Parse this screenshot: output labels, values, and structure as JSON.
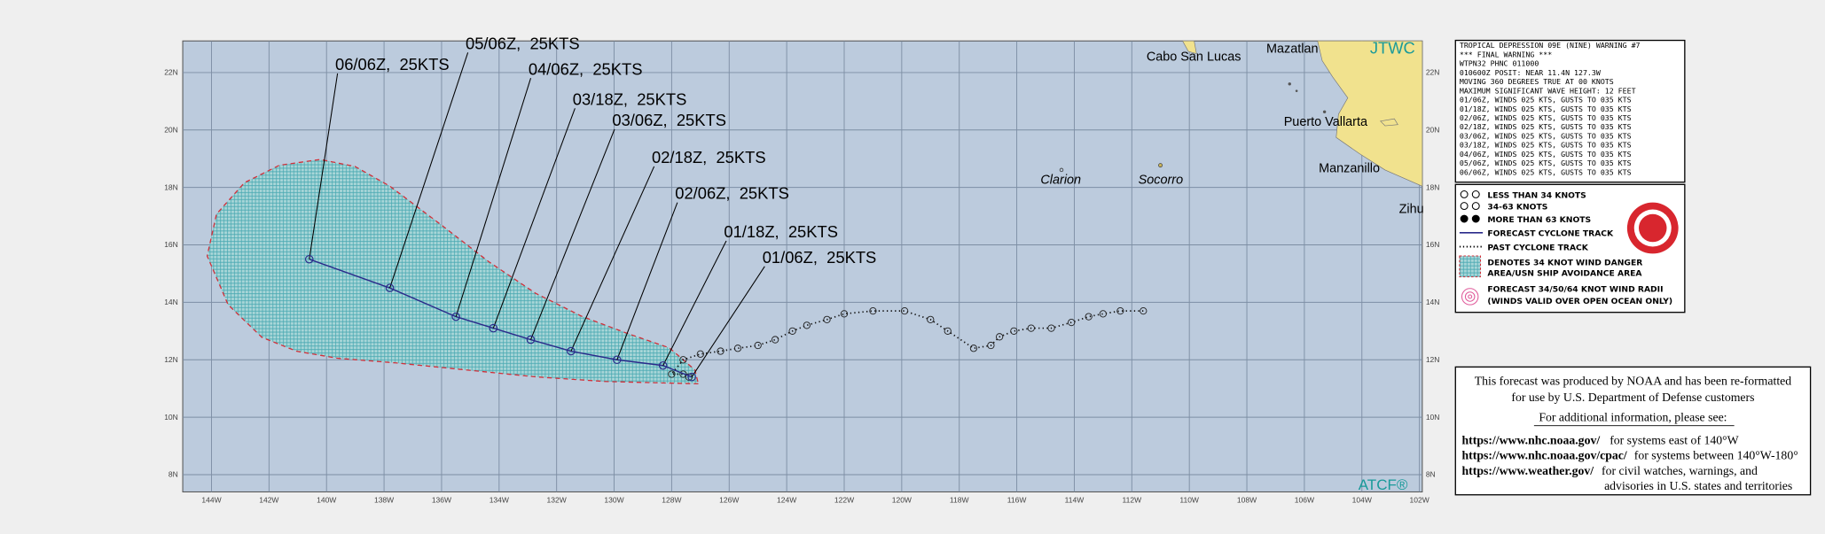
{
  "map": {
    "lon_lim": [
      -145,
      -101.9
    ],
    "lat_lim": [
      7.4,
      23.1
    ],
    "lon_ticks": [
      {
        "value": -144,
        "label": "144W"
      },
      {
        "value": -142,
        "label": "142W"
      },
      {
        "value": -140,
        "label": "140W"
      },
      {
        "value": -138,
        "label": "138W"
      },
      {
        "value": -136,
        "label": "136W"
      },
      {
        "value": -134,
        "label": "134W"
      },
      {
        "value": -132,
        "label": "132W"
      },
      {
        "value": -130,
        "label": "130W"
      },
      {
        "value": -128,
        "label": "128W"
      },
      {
        "value": -126,
        "label": "126W"
      },
      {
        "value": -124,
        "label": "124W"
      },
      {
        "value": -122,
        "label": "122W"
      },
      {
        "value": -120,
        "label": "120W"
      },
      {
        "value": -118,
        "label": "118W"
      },
      {
        "value": -116,
        "label": "116W"
      },
      {
        "value": -114,
        "label": "114W"
      },
      {
        "value": -112,
        "label": "112W"
      },
      {
        "value": -110,
        "label": "110W"
      },
      {
        "value": -108,
        "label": "108W"
      },
      {
        "value": -106,
        "label": "106W"
      },
      {
        "value": -104,
        "label": "104W"
      },
      {
        "value": -102,
        "label": "102W"
      }
    ],
    "lat_ticks": [
      {
        "value": 8,
        "label": "8N"
      },
      {
        "value": 10,
        "label": "10N"
      },
      {
        "value": 12,
        "label": "12N"
      },
      {
        "value": 14,
        "label": "14N"
      },
      {
        "value": 16,
        "label": "16N"
      },
      {
        "value": 18,
        "label": "18N"
      },
      {
        "value": 20,
        "label": "20N"
      },
      {
        "value": 22,
        "label": "22N"
      }
    ],
    "places": [
      "Cabo San Lucas",
      "Mazatlan",
      "Puerto Vallarta",
      "Manzanillo",
      "Zihu",
      "Clarion",
      "Socorro"
    ],
    "agency": "JTWC",
    "credit": "ATCF®"
  },
  "track": {
    "forecast": [
      {
        "label": "01/06Z,  25KTS",
        "lon": -127.3,
        "lat": 11.4
      },
      {
        "label": "01/18Z,  25KTS",
        "lon": -128.3,
        "lat": 11.8
      },
      {
        "label": "02/06Z,  25KTS",
        "lon": -129.9,
        "lat": 12.0
      },
      {
        "label": "02/18Z,  25KTS",
        "lon": -131.5,
        "lat": 12.3
      },
      {
        "label": "03/06Z,  25KTS",
        "lon": -132.9,
        "lat": 12.7
      },
      {
        "label": "03/18Z,  25KTS",
        "lon": -134.2,
        "lat": 13.1
      },
      {
        "label": "04/06Z,  25KTS",
        "lon": -135.5,
        "lat": 13.5
      },
      {
        "label": "05/06Z,  25KTS",
        "lon": -137.8,
        "lat": 14.5
      },
      {
        "label": "06/06Z,  25KTS",
        "lon": -140.6,
        "lat": 15.5
      }
    ],
    "past": {
      "lon": [
        -111.6,
        -112.4,
        -113.0,
        -113.5,
        -114.1,
        -114.8,
        -115.5,
        -116.1,
        -116.6,
        -116.9,
        -117.5,
        -118.4,
        -119.0,
        -119.9,
        -121.0,
        -122.0,
        -122.6,
        -123.3,
        -123.8,
        -124.4,
        -125.0,
        -125.7,
        -126.3,
        -127.0,
        -127.6,
        -128.0,
        -127.6,
        -127.4
      ],
      "lat": [
        13.7,
        13.7,
        13.6,
        13.5,
        13.3,
        13.1,
        13.1,
        13.0,
        12.8,
        12.5,
        12.4,
        13.0,
        13.4,
        13.7,
        13.7,
        13.6,
        13.4,
        13.2,
        13.0,
        12.7,
        12.5,
        12.4,
        12.3,
        12.2,
        12.0,
        11.5,
        11.5,
        11.4
      ]
    }
  },
  "warning": {
    "lines": [
      "TROPICAL DEPRESSION 09E (NINE) WARNING #7",
      "*** FINAL WARNING ***",
      "WTPN32 PHNC 011000",
      "010600Z POSIT: NEAR 11.4N 127.3W",
      "MOVING 360 DEGREES TRUE AT 00 KNOTS",
      "MAXIMUM SIGNIFICANT WAVE HEIGHT: 12 FEET",
      "01/06Z, WINDS 025 KTS, GUSTS TO 035 KTS",
      "01/18Z, WINDS 025 KTS, GUSTS TO 035 KTS",
      "02/06Z, WINDS 025 KTS, GUSTS TO 035 KTS",
      "02/18Z, WINDS 025 KTS, GUSTS TO 035 KTS",
      "03/06Z, WINDS 025 KTS, GUSTS TO 035 KTS",
      "03/18Z, WINDS 025 KTS, GUSTS TO 035 KTS",
      "04/06Z, WINDS 025 KTS, GUSTS TO 035 KTS",
      "05/06Z, WINDS 025 KTS, GUSTS TO 035 KTS",
      "06/06Z, WINDS 025 KTS, GUSTS TO 035 KTS"
    ]
  },
  "legend": [
    "LESS THAN 34 KNOTS",
    "34-63 KNOTS",
    "MORE THAN 63 KNOTS",
    "FORECAST CYCLONE TRACK",
    "PAST CYCLONE TRACK",
    "DENOTES 34 KNOT WIND DANGER",
    "AREA/USN SHIP AVOIDANCE AREA",
    "FORECAST 34/50/64 KNOT WIND RADII",
    "(WINDS VALID OVER OPEN OCEAN ONLY)"
  ],
  "disclaimer": {
    "lines": [
      "This forecast was produced by NOAA and has been re-formatted",
      "for use by U.S. Department of Defense customers",
      "For additional information, please see:"
    ],
    "links": [
      {
        "url": "https://www.nhc.noaa.gov/",
        "text": "for systems east of 140°W"
      },
      {
        "url": "https://www.nhc.noaa.gov/cpac/",
        "text": "for systems between 140°W-180°"
      },
      {
        "url": "https://www.weather.gov/",
        "text": "for civil watches, warnings, and"
      }
    ],
    "last_line": "advisories in U.S. states and territories"
  }
}
